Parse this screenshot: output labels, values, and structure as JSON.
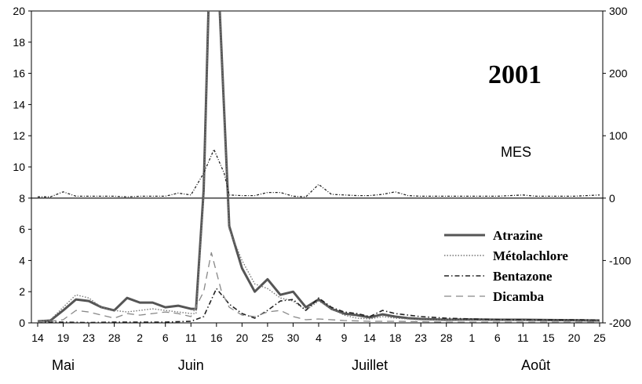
{
  "chart_data": {
    "type": "line",
    "title": "2001",
    "secondary_label": "MES",
    "xlabel": "",
    "ylabel": "",
    "x_tick_labels": [
      "14",
      "19",
      "23",
      "28",
      "2",
      "6",
      "11",
      "16",
      "20",
      "25",
      "30",
      "4",
      "9",
      "14",
      "18",
      "23",
      "28",
      "1",
      "6",
      "11",
      "15",
      "20",
      "25"
    ],
    "month_labels": [
      {
        "label": "Mai",
        "near_tick": 1
      },
      {
        "label": "Juin",
        "near_tick": 6
      },
      {
        "label": "Juillet",
        "near_tick": 13
      },
      {
        "label": "Août",
        "near_tick": 19.5
      }
    ],
    "y_left": {
      "ylim": [
        0,
        20
      ],
      "ticks": [
        0,
        2,
        4,
        6,
        8,
        10,
        12,
        14,
        16,
        18,
        20
      ]
    },
    "y_right": {
      "ylim": [
        -200,
        300
      ],
      "ticks": [
        -200,
        -100,
        0,
        100,
        200,
        300
      ]
    },
    "legend": {
      "placement": "bottom-right",
      "entries": [
        "Atrazine",
        "Métolachlore",
        "Bentazone",
        "Dicamba"
      ]
    },
    "series": [
      {
        "name": "Atrazine",
        "style": "solid-thick",
        "color": "#555555",
        "points": [
          [
            0,
            0.1
          ],
          [
            0.5,
            0.15
          ],
          [
            1,
            0.8
          ],
          [
            1.5,
            1.5
          ],
          [
            2,
            1.4
          ],
          [
            2.5,
            1.0
          ],
          [
            3,
            0.8
          ],
          [
            3.5,
            1.6
          ],
          [
            4,
            1.3
          ],
          [
            4.5,
            1.3
          ],
          [
            5,
            1.0
          ],
          [
            5.5,
            1.1
          ],
          [
            6,
            0.9
          ],
          [
            6.2,
            0.9
          ],
          [
            6.5,
            8.5
          ],
          [
            6.7,
            21
          ],
          [
            7.1,
            21
          ],
          [
            7.5,
            6.2
          ],
          [
            8,
            3.5
          ],
          [
            8.5,
            2.0
          ],
          [
            9,
            2.8
          ],
          [
            9.5,
            1.8
          ],
          [
            10,
            2.0
          ],
          [
            10.5,
            1.0
          ],
          [
            11,
            1.5
          ],
          [
            11.5,
            0.9
          ],
          [
            12,
            0.6
          ],
          [
            12.5,
            0.5
          ],
          [
            13,
            0.35
          ],
          [
            13.5,
            0.55
          ],
          [
            14,
            0.4
          ],
          [
            14.5,
            0.3
          ],
          [
            15,
            0.25
          ],
          [
            16,
            0.2
          ],
          [
            17,
            0.22
          ],
          [
            18,
            0.2
          ],
          [
            19,
            0.2
          ],
          [
            20,
            0.18
          ],
          [
            21,
            0.17
          ],
          [
            22,
            0.15
          ]
        ]
      },
      {
        "name": "Métolachlore",
        "style": "dotted",
        "color": "#777777",
        "points": [
          [
            0,
            0.1
          ],
          [
            0.5,
            0.2
          ],
          [
            1,
            1.0
          ],
          [
            1.5,
            1.8
          ],
          [
            2,
            1.6
          ],
          [
            2.5,
            1.0
          ],
          [
            3,
            0.8
          ],
          [
            3.5,
            0.7
          ],
          [
            4,
            0.8
          ],
          [
            4.5,
            0.9
          ],
          [
            5,
            0.8
          ],
          [
            5.5,
            0.7
          ],
          [
            6,
            0.6
          ],
          [
            6.2,
            0.6
          ],
          [
            6.5,
            8.0
          ],
          [
            6.7,
            21
          ],
          [
            7.1,
            21
          ],
          [
            7.5,
            6.0
          ],
          [
            8,
            4.0
          ],
          [
            8.5,
            2.5
          ],
          [
            9,
            2.2
          ],
          [
            9.5,
            1.6
          ],
          [
            10,
            1.4
          ],
          [
            10.5,
            0.8
          ],
          [
            11,
            1.4
          ],
          [
            11.5,
            0.9
          ],
          [
            12,
            0.5
          ],
          [
            12.5,
            0.3
          ],
          [
            13,
            0.25
          ],
          [
            13.5,
            0.4
          ],
          [
            14,
            0.3
          ],
          [
            15,
            0.2
          ],
          [
            16,
            0.2
          ],
          [
            17,
            0.2
          ],
          [
            18,
            0.18
          ],
          [
            19,
            0.17
          ],
          [
            20,
            0.15
          ],
          [
            21,
            0.14
          ],
          [
            22,
            0.13
          ]
        ]
      },
      {
        "name": "Bentazone",
        "style": "dash-dot",
        "color": "#222222",
        "points": [
          [
            0,
            0.05
          ],
          [
            1,
            0.05
          ],
          [
            2,
            0.02
          ],
          [
            3,
            0.05
          ],
          [
            4,
            0.05
          ],
          [
            5,
            0.05
          ],
          [
            6,
            0.1
          ],
          [
            6.5,
            0.4
          ],
          [
            7,
            2.2
          ],
          [
            7.5,
            1.2
          ],
          [
            8,
            0.6
          ],
          [
            8.5,
            0.3
          ],
          [
            9,
            0.8
          ],
          [
            9.5,
            1.4
          ],
          [
            10,
            1.5
          ],
          [
            10.5,
            0.8
          ],
          [
            11,
            1.6
          ],
          [
            11.5,
            1.0
          ],
          [
            12,
            0.7
          ],
          [
            12.5,
            0.6
          ],
          [
            13,
            0.4
          ],
          [
            13.5,
            0.8
          ],
          [
            14,
            0.6
          ],
          [
            15,
            0.4
          ],
          [
            16,
            0.3
          ],
          [
            17,
            0.25
          ],
          [
            18,
            0.22
          ],
          [
            19,
            0.2
          ],
          [
            20,
            0.2
          ],
          [
            21,
            0.2
          ],
          [
            22,
            0.18
          ]
        ]
      },
      {
        "name": "Dicamba",
        "style": "dashed",
        "color": "#888888",
        "points": [
          [
            0,
            0.05
          ],
          [
            0.5,
            0.1
          ],
          [
            1,
            0.2
          ],
          [
            1.5,
            0.8
          ],
          [
            2,
            0.7
          ],
          [
            2.5,
            0.5
          ],
          [
            3,
            0.3
          ],
          [
            3.5,
            0.6
          ],
          [
            4,
            0.5
          ],
          [
            4.5,
            0.6
          ],
          [
            5,
            0.7
          ],
          [
            5.5,
            0.6
          ],
          [
            6,
            0.4
          ],
          [
            6.5,
            2.0
          ],
          [
            6.8,
            4.5
          ],
          [
            7.2,
            2.0
          ],
          [
            7.5,
            1.0
          ],
          [
            8,
            0.5
          ],
          [
            8.5,
            0.4
          ],
          [
            9,
            0.7
          ],
          [
            9.5,
            0.8
          ],
          [
            10,
            0.4
          ],
          [
            10.5,
            0.2
          ],
          [
            11,
            0.25
          ],
          [
            12,
            0.15
          ],
          [
            13,
            0.1
          ],
          [
            14,
            0.1
          ],
          [
            15,
            0.08
          ],
          [
            16,
            0.05
          ],
          [
            17,
            0.05
          ],
          [
            18,
            0.05
          ],
          [
            19,
            0.05
          ],
          [
            20,
            0.05
          ],
          [
            21,
            0.05
          ],
          [
            22,
            0.05
          ]
        ]
      },
      {
        "name": "MES",
        "axis": "right",
        "style": "dash-dot-small",
        "color": "#222222",
        "points": [
          [
            0,
            2
          ],
          [
            0.5,
            2
          ],
          [
            1,
            10
          ],
          [
            1.5,
            3
          ],
          [
            2,
            3
          ],
          [
            3,
            3
          ],
          [
            3.5,
            2
          ],
          [
            4,
            3
          ],
          [
            5,
            3
          ],
          [
            5.5,
            8
          ],
          [
            6,
            5
          ],
          [
            6.5,
            40
          ],
          [
            6.9,
            78
          ],
          [
            7.3,
            40
          ],
          [
            7.5,
            5
          ],
          [
            8,
            4
          ],
          [
            8.5,
            4
          ],
          [
            9,
            9
          ],
          [
            9.5,
            9
          ],
          [
            10,
            3
          ],
          [
            10.5,
            2
          ],
          [
            11,
            22
          ],
          [
            11.5,
            6
          ],
          [
            12,
            5
          ],
          [
            12.5,
            4
          ],
          [
            13,
            4
          ],
          [
            13.5,
            6
          ],
          [
            14,
            10
          ],
          [
            14.5,
            4
          ],
          [
            15,
            3
          ],
          [
            16,
            3
          ],
          [
            17,
            3
          ],
          [
            18,
            3
          ],
          [
            19,
            5
          ],
          [
            19.5,
            3
          ],
          [
            20,
            3
          ],
          [
            21,
            3
          ],
          [
            21.5,
            4
          ],
          [
            22,
            5
          ]
        ]
      }
    ]
  }
}
